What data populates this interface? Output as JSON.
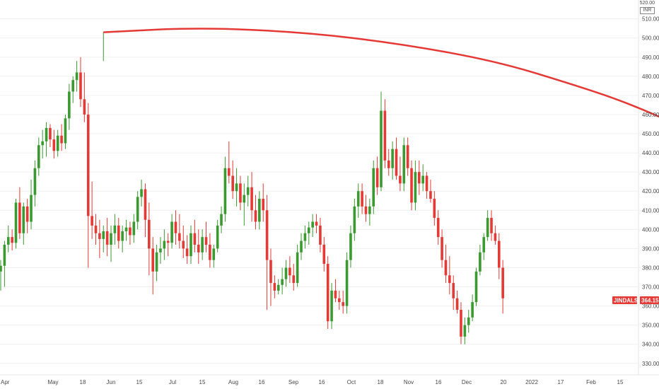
{
  "chart_data": {
    "type": "candlestick",
    "symbol": "JINDALSTEL",
    "currency": "INR",
    "last_price": "364.15",
    "colors": {
      "up": "#26a69a",
      "up_body": "#3a9a2f",
      "down": "#e53935",
      "arc": "#e53935",
      "grid": "#f0f0f0"
    },
    "ylim": [
      324,
      518
    ],
    "y_tick_labels": [
      "510.00",
      "500.00",
      "490.00",
      "480.00",
      "470.00",
      "460.00",
      "450.00",
      "440.00",
      "430.00",
      "420.00",
      "410.00",
      "400.00",
      "390.00",
      "380.00",
      "370.00",
      "360.00",
      "350.00",
      "340.00",
      "330.00"
    ],
    "y_top_label": "520.00",
    "x_tick_labels": [
      "Apr",
      "May",
      "18",
      "Jun",
      "15",
      "Jul",
      "15",
      "Aug",
      "16",
      "Sep",
      "16",
      "Oct",
      "18",
      "Nov",
      "16",
      "Dec",
      "20",
      "2022",
      "17",
      "Feb",
      "15"
    ],
    "arc_points": [
      [
        27,
        503
      ],
      [
        52,
        505.5
      ],
      [
        80,
        503
      ],
      [
        105,
        497
      ],
      [
        130,
        488
      ],
      [
        150,
        476
      ],
      [
        165,
        466
      ],
      [
        182,
        451
      ],
      [
        200,
        432
      ],
      [
        216,
        411
      ],
      [
        230,
        389
      ],
      [
        245,
        361
      ],
      [
        262,
        322
      ]
    ],
    "candles": [
      [
        0,
        378,
        384,
        368,
        381
      ],
      [
        1,
        381,
        394,
        370,
        392
      ],
      [
        2,
        392,
        402,
        388,
        396
      ],
      [
        3,
        396,
        400,
        389,
        393
      ],
      [
        4,
        393,
        416,
        390,
        414
      ],
      [
        5,
        414,
        422,
        395,
        398
      ],
      [
        6,
        398,
        414,
        392,
        412
      ],
      [
        7,
        412,
        416,
        398,
        404
      ],
      [
        8,
        404,
        426,
        400,
        418
      ],
      [
        9,
        418,
        436,
        412,
        432
      ],
      [
        10,
        432,
        448,
        428,
        444
      ],
      [
        11,
        444,
        452,
        437,
        446
      ],
      [
        12,
        446,
        456,
        438,
        453
      ],
      [
        13,
        453,
        455,
        443,
        447
      ],
      [
        14,
        447,
        452,
        437,
        441
      ],
      [
        15,
        441,
        452,
        438,
        449
      ],
      [
        16,
        449,
        455,
        441,
        445
      ],
      [
        17,
        445,
        460,
        442,
        458
      ],
      [
        18,
        458,
        476,
        452,
        472
      ],
      [
        19,
        472,
        480,
        466,
        478
      ],
      [
        20,
        478,
        488,
        472,
        482
      ],
      [
        21,
        482,
        490,
        464,
        468
      ],
      [
        22,
        468,
        482,
        456,
        460
      ],
      [
        23,
        460,
        466,
        380,
        407
      ],
      [
        24,
        407,
        425,
        395,
        402
      ],
      [
        25,
        402,
        408,
        392,
        398
      ],
      [
        26,
        398,
        405,
        385,
        395
      ],
      [
        27,
        395,
        402,
        388,
        399
      ],
      [
        28,
        399,
        406,
        386,
        392
      ],
      [
        29,
        392,
        402,
        383,
        398
      ],
      [
        30,
        398,
        408,
        392,
        402
      ],
      [
        31,
        402,
        406,
        390,
        394
      ],
      [
        32,
        394,
        402,
        388,
        399
      ],
      [
        33,
        399,
        405,
        394,
        401
      ],
      [
        34,
        401,
        404,
        392,
        397
      ],
      [
        35,
        397,
        408,
        393,
        404
      ],
      [
        36,
        404,
        420,
        400,
        417
      ],
      [
        37,
        417,
        426,
        412,
        421
      ],
      [
        38,
        421,
        424,
        396,
        405
      ],
      [
        39,
        405,
        414,
        376,
        390
      ],
      [
        40,
        390,
        396,
        366,
        378
      ],
      [
        41,
        378,
        392,
        373,
        388
      ],
      [
        42,
        388,
        396,
        382,
        390
      ],
      [
        43,
        390,
        400,
        384,
        394
      ],
      [
        44,
        394,
        398,
        386,
        393
      ],
      [
        45,
        393,
        408,
        390,
        404
      ],
      [
        46,
        404,
        410,
        392,
        398
      ],
      [
        47,
        398,
        408,
        390,
        394
      ],
      [
        48,
        394,
        402,
        385,
        390
      ],
      [
        49,
        390,
        397,
        382,
        386
      ],
      [
        50,
        386,
        402,
        382,
        398
      ],
      [
        51,
        398,
        405,
        388,
        392
      ],
      [
        52,
        392,
        400,
        382,
        388
      ],
      [
        53,
        388,
        400,
        384,
        396
      ],
      [
        54,
        396,
        404,
        388,
        392
      ],
      [
        55,
        392,
        398,
        380,
        384
      ],
      [
        56,
        384,
        392,
        380,
        390
      ],
      [
        57,
        390,
        405,
        388,
        402
      ],
      [
        58,
        402,
        412,
        398,
        408
      ],
      [
        59,
        408,
        438,
        404,
        432
      ],
      [
        60,
        432,
        446,
        424,
        428
      ],
      [
        61,
        428,
        436,
        416,
        420
      ],
      [
        62,
        420,
        432,
        412,
        424
      ],
      [
        63,
        424,
        428,
        410,
        414
      ],
      [
        64,
        414,
        424,
        402,
        418
      ],
      [
        65,
        418,
        428,
        412,
        422
      ],
      [
        66,
        422,
        430,
        404,
        410
      ],
      [
        67,
        410,
        418,
        400,
        404
      ],
      [
        68,
        404,
        420,
        400,
        416
      ],
      [
        69,
        416,
        424,
        404,
        410
      ],
      [
        70,
        410,
        418,
        358,
        384
      ],
      [
        71,
        384,
        390,
        360,
        372
      ],
      [
        72,
        372,
        376,
        364,
        368
      ],
      [
        73,
        368,
        374,
        366,
        371
      ],
      [
        74,
        371,
        380,
        366,
        374
      ],
      [
        75,
        374,
        384,
        370,
        380
      ],
      [
        76,
        380,
        386,
        372,
        376
      ],
      [
        77,
        376,
        382,
        368,
        372
      ],
      [
        78,
        372,
        392,
        370,
        388
      ],
      [
        79,
        388,
        398,
        384,
        394
      ],
      [
        80,
        394,
        402,
        390,
        398
      ],
      [
        81,
        398,
        404,
        392,
        401
      ],
      [
        82,
        401,
        408,
        396,
        404
      ],
      [
        83,
        404,
        408,
        398,
        402
      ],
      [
        84,
        402,
        406,
        388,
        392
      ],
      [
        85,
        392,
        396,
        378,
        382
      ],
      [
        86,
        382,
        386,
        348,
        352
      ],
      [
        87,
        352,
        372,
        348,
        368
      ],
      [
        88,
        368,
        374,
        362,
        364
      ],
      [
        89,
        364,
        368,
        358,
        362
      ],
      [
        90,
        362,
        368,
        356,
        360
      ],
      [
        91,
        360,
        388,
        356,
        384
      ],
      [
        92,
        384,
        402,
        380,
        398
      ],
      [
        93,
        398,
        416,
        394,
        412
      ],
      [
        94,
        412,
        424,
        406,
        420
      ],
      [
        95,
        420,
        424,
        408,
        412
      ],
      [
        96,
        412,
        418,
        404,
        408
      ],
      [
        97,
        408,
        416,
        402,
        412
      ],
      [
        98,
        412,
        436,
        408,
        432
      ],
      [
        99,
        432,
        438,
        418,
        422
      ],
      [
        100,
        422,
        472,
        420,
        462
      ],
      [
        101,
        462,
        468,
        432,
        436
      ],
      [
        102,
        436,
        442,
        428,
        432
      ],
      [
        103,
        432,
        446,
        426,
        442
      ],
      [
        104,
        442,
        448,
        426,
        428
      ],
      [
        105,
        428,
        438,
        420,
        424
      ],
      [
        106,
        424,
        448,
        420,
        444
      ],
      [
        107,
        444,
        448,
        428,
        432
      ],
      [
        108,
        432,
        436,
        410,
        414
      ],
      [
        109,
        414,
        436,
        410,
        430
      ],
      [
        110,
        430,
        436,
        418,
        424
      ],
      [
        111,
        424,
        434,
        420,
        428
      ],
      [
        112,
        428,
        430,
        416,
        420
      ],
      [
        113,
        420,
        426,
        414,
        416
      ],
      [
        114,
        416,
        420,
        402,
        406
      ],
      [
        115,
        406,
        410,
        392,
        396
      ],
      [
        116,
        396,
        400,
        380,
        384
      ],
      [
        117,
        384,
        392,
        372,
        376
      ],
      [
        118,
        376,
        386,
        366,
        372
      ],
      [
        119,
        372,
        376,
        358,
        364
      ],
      [
        120,
        364,
        368,
        356,
        358
      ],
      [
        121,
        358,
        362,
        340,
        344
      ],
      [
        122,
        344,
        354,
        340,
        350
      ],
      [
        123,
        350,
        358,
        346,
        354
      ],
      [
        124,
        354,
        366,
        352,
        362
      ],
      [
        125,
        362,
        380,
        360,
        378
      ],
      [
        126,
        378,
        392,
        376,
        388
      ],
      [
        127,
        388,
        398,
        384,
        396
      ],
      [
        128,
        396,
        410,
        394,
        406
      ],
      [
        129,
        406,
        410,
        394,
        398
      ],
      [
        130,
        398,
        402,
        392,
        394
      ],
      [
        131,
        394,
        398,
        374,
        380
      ],
      [
        132,
        380,
        384,
        356,
        364
      ]
    ]
  }
}
